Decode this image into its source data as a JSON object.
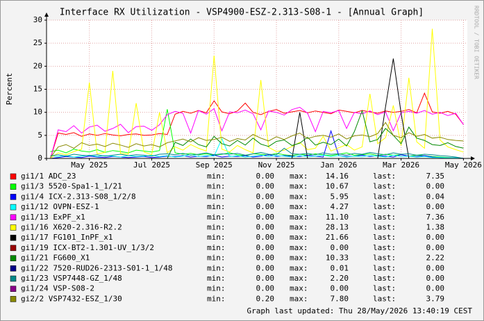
{
  "chart_data": {
    "type": "line",
    "title": "Interface RX Utilization - VSP4900-ESZ-2.313-S08-1 - [Annual Graph]",
    "y_label": "Percent",
    "watermark": "RRDTOOL / TOBI OETIKER",
    "footer": "Graph last updated: Thu 28/May/2026 13:40:19 CEST",
    "stat_labels": [
      "min:",
      "max:",
      "last:"
    ],
    "categories": [
      null,
      null,
      null,
      null,
      null,
      "May 2025",
      null,
      null,
      null,
      null,
      null,
      null,
      null,
      "Jul 2025",
      null,
      null,
      null,
      null,
      null,
      null,
      null,
      "Sep 2025",
      null,
      null,
      null,
      null,
      null,
      null,
      null,
      "Nov 2025",
      null,
      null,
      null,
      null,
      null,
      null,
      null,
      "Jan 2026",
      null,
      null,
      null,
      null,
      null,
      null,
      null,
      "Mar 2026",
      null,
      null,
      null,
      null,
      null,
      null,
      null,
      "May 2026"
    ],
    "ylim": [
      0,
      30
    ],
    "yticks": [
      0,
      5,
      10,
      15,
      20,
      25,
      30
    ],
    "grid": true,
    "series": [
      {
        "name": "gi1/1 ADC_23",
        "color": "#ff0000",
        "min": "0.00",
        "max": "14.16",
        "last": "7.35",
        "values": [
          0,
          5.5,
          5.2,
          5.6,
          4.8,
          5.3,
          5.0,
          5.4,
          5.1,
          4.9,
          5.2,
          5.3,
          5.0,
          5.1,
          5.4,
          5.2,
          9.6,
          10.2,
          9.8,
          10.4,
          9.9,
          12.5,
          10.1,
          9.7,
          10.3,
          12.0,
          10.0,
          9.5,
          10.2,
          10.6,
          9.8,
          10.1,
          10.4,
          9.9,
          10.3,
          10.0,
          9.7,
          10.5,
          10.2,
          9.9,
          10.4,
          10.1,
          9.8,
          10.3,
          10.0,
          10.2,
          10.6,
          9.9,
          14.16,
          10.1,
          9.8,
          10.2,
          9.6,
          7.35
        ]
      },
      {
        "name": "gi1/3 5520-Spa1-1_1/21",
        "color": "#00ff00",
        "min": "0.00",
        "max": "10.67",
        "last": "0.00",
        "values": [
          1.5,
          1.8,
          1.2,
          2.0,
          1.6,
          1.4,
          1.9,
          1.3,
          1.7,
          1.5,
          1.2,
          1.8,
          1.6,
          1.4,
          1.7,
          10.67,
          1.2,
          0.9,
          1.1,
          0.8,
          1.0,
          0.7,
          0.9,
          1.2,
          0.8,
          0.6,
          1.0,
          0.9,
          0.7,
          1.1,
          0.8,
          0.6,
          0.9,
          0.7,
          1.0,
          0.8,
          0.6,
          0.9,
          1.2,
          0.7,
          0.8,
          1.0,
          0.6,
          0.9,
          0.7,
          0.8,
          0.5,
          0.7,
          0.6,
          0.4,
          0.3,
          0.2,
          0.1,
          0
        ]
      },
      {
        "name": "gi1/4 ICX-2.313-S08_1/2/8",
        "color": "#0000ff",
        "min": "0.00",
        "max": "5.95",
        "last": "0.04",
        "values": [
          0,
          0.2,
          0.4,
          0.3,
          0.2,
          0.5,
          0.3,
          0.2,
          0.4,
          0.3,
          0.2,
          0.3,
          0.4,
          0.2,
          0.3,
          0.5,
          0.4,
          0.6,
          0.3,
          0.5,
          0.4,
          0.7,
          0.3,
          0.5,
          0.4,
          0.6,
          0.3,
          0.5,
          0.8,
          0.4,
          0.6,
          0.5,
          0.4,
          0.7,
          0.5,
          0.3,
          5.95,
          0.6,
          0.4,
          0.5,
          0.7,
          0.4,
          0.6,
          0.5,
          0.3,
          0.8,
          0.5,
          0.4,
          0.6,
          0.3,
          0.2,
          0.1,
          0.1,
          0.04
        ]
      },
      {
        "name": "gi1/12 OVPN-ESZ-1",
        "color": "#00ffff",
        "min": "0.00",
        "max": "4.27",
        "last": "0.00",
        "values": [
          0.5,
          0.4,
          0.6,
          0.3,
          0.5,
          0.7,
          0.4,
          0.6,
          0.5,
          0.3,
          0.6,
          0.4,
          0.5,
          0.7,
          0.4,
          0.6,
          0.3,
          0.5,
          0.8,
          0.4,
          0.6,
          0.5,
          4.27,
          0.4,
          0.6,
          0.3,
          0.5,
          0.7,
          0.4,
          0.6,
          0.5,
          0.3,
          0.6,
          0.4,
          0.5,
          0.7,
          0.4,
          0.6,
          0.3,
          0.5,
          0.4,
          0.6,
          0.5,
          0.3,
          0.7,
          0.4,
          0.5,
          0.3,
          0.4,
          0.2,
          0.2,
          0.1,
          0.1,
          0
        ]
      },
      {
        "name": "gi1/13 ExPF_x1",
        "color": "#ff00ff",
        "min": "0.00",
        "max": "11.10",
        "last": "7.36",
        "values": [
          0,
          6.2,
          5.8,
          7.1,
          5.5,
          6.8,
          7.2,
          5.9,
          6.5,
          7.4,
          5.6,
          6.9,
          7.0,
          6.1,
          7.3,
          9.5,
          10.2,
          9.8,
          5.5,
          10.4,
          9.6,
          10.8,
          6.0,
          10.1,
          9.9,
          10.5,
          9.7,
          6.2,
          10.3,
          10.0,
          9.4,
          10.6,
          11.1,
          9.8,
          5.8,
          10.2,
          9.9,
          10.4,
          6.5,
          10.0,
          9.7,
          10.3,
          9.5,
          10.1,
          6.0,
          9.9,
          10.2,
          9.8,
          10.4,
          9.6,
          10.0,
          9.3,
          9.8,
          7.36
        ]
      },
      {
        "name": "gi1/16 X620-2.316-R2.2",
        "color": "#ffff00",
        "min": "0.00",
        "max": "28.13",
        "last": "1.38",
        "values": [
          0,
          1.2,
          0.8,
          1.5,
          2.0,
          16.5,
          1.0,
          1.3,
          19.0,
          1.1,
          0.9,
          12.0,
          1.4,
          0.8,
          10.0,
          1.2,
          2.5,
          1.8,
          3.0,
          2.2,
          1.6,
          22.3,
          2.0,
          1.4,
          2.8,
          1.9,
          1.2,
          17.0,
          2.4,
          1.5,
          1.8,
          2.6,
          3.5,
          1.9,
          2.2,
          4.8,
          1.6,
          2.3,
          3.0,
          1.8,
          2.5,
          14.0,
          3.2,
          4.5,
          11.5,
          2.8,
          17.5,
          3.6,
          2.2,
          28.13,
          4.0,
          2.5,
          1.9,
          1.38
        ]
      },
      {
        "name": "gi1/17 FG101_InPF_x1",
        "color": "#000000",
        "min": "0.00",
        "max": "21.66",
        "last": "0.00",
        "values": [
          0,
          0,
          0,
          0,
          0,
          0,
          0,
          0,
          0,
          0,
          0,
          0,
          0,
          0,
          0,
          0,
          0,
          0,
          0,
          0,
          0,
          0,
          0,
          0,
          0,
          0,
          0,
          0,
          0,
          0,
          0,
          0,
          10.0,
          0,
          0,
          0,
          0,
          0,
          0,
          0,
          0,
          0,
          0,
          11.2,
          21.66,
          9.8,
          0,
          0,
          0,
          0,
          0,
          0,
          0,
          0
        ]
      },
      {
        "name": "gi1/19 ICX-BT2-1.301-UV_1/3/2",
        "color": "#990000",
        "min": "0.00",
        "max": "0.00",
        "last": "0.00",
        "values": [
          0,
          0,
          0,
          0,
          0,
          0,
          0,
          0,
          0,
          0,
          0,
          0,
          0,
          0,
          0,
          0,
          0,
          0,
          0,
          0,
          0,
          0,
          0,
          0,
          0,
          0,
          0,
          0,
          0,
          0,
          0,
          0,
          0,
          0,
          0,
          0,
          0,
          0,
          0,
          0,
          0,
          0,
          0,
          0,
          0,
          0,
          0,
          0,
          0,
          0,
          0,
          0,
          0,
          0
        ]
      },
      {
        "name": "gi1/21 FG600_X1",
        "color": "#008800",
        "min": "0.00",
        "max": "10.33",
        "last": "2.22",
        "values": [
          0,
          0,
          0,
          0,
          0,
          0,
          0,
          0,
          0,
          0,
          0,
          0,
          0,
          0,
          0,
          0,
          3.5,
          2.8,
          4.2,
          3.0,
          2.5,
          4.8,
          3.2,
          2.7,
          3.9,
          2.9,
          4.4,
          3.1,
          2.6,
          3.7,
          4.0,
          2.8,
          3.3,
          4.6,
          2.9,
          3.5,
          3.0,
          4.2,
          2.7,
          5.8,
          10.33,
          3.6,
          4.1,
          6.5,
          5.0,
          3.2,
          6.8,
          4.4,
          3.9,
          3.0,
          2.8,
          3.4,
          2.6,
          2.22
        ]
      },
      {
        "name": "gi1/22 7520-RUD26-2313-S01-1_1/48",
        "color": "#000088",
        "min": "0.00",
        "max": "0.01",
        "last": "0.00",
        "values": [
          0,
          0,
          0,
          0,
          0,
          0,
          0,
          0,
          0,
          0,
          0,
          0,
          0,
          0,
          0,
          0,
          0,
          0,
          0,
          0,
          0.01,
          0,
          0,
          0,
          0,
          0,
          0,
          0,
          0,
          0,
          0,
          0,
          0,
          0,
          0,
          0,
          0,
          0,
          0,
          0,
          0,
          0,
          0,
          0,
          0,
          0,
          0,
          0,
          0,
          0,
          0,
          0,
          0,
          0
        ]
      },
      {
        "name": "gi1/23 VSP7448-GZ_1/48",
        "color": "#008888",
        "min": "0.00",
        "max": "2.20",
        "last": "0.00",
        "values": [
          0.6,
          0.8,
          0.5,
          0.9,
          0.7,
          0.6,
          0.8,
          0.5,
          0.7,
          0.9,
          0.6,
          0.8,
          0.7,
          0.5,
          0.9,
          1.0,
          0.8,
          1.1,
          0.7,
          0.9,
          1.2,
          0.8,
          1.0,
          0.9,
          1.1,
          0.7,
          1.0,
          1.3,
          0.9,
          0.8,
          2.2,
          1.0,
          0.9,
          1.1,
          0.8,
          1.2,
          0.9,
          1.0,
          0.7,
          1.1,
          0.9,
          1.3,
          1.0,
          0.8,
          1.2,
          0.9,
          1.0,
          0.7,
          0.9,
          0.8,
          0.6,
          0.5,
          0.3,
          0
        ]
      },
      {
        "name": "gi1/24 VSP-S08-2",
        "color": "#880088",
        "min": "0.00",
        "max": "0.00",
        "last": "0.00",
        "values": [
          0,
          0,
          0,
          0,
          0,
          0,
          0,
          0,
          0,
          0,
          0,
          0,
          0,
          0,
          0,
          0,
          0,
          0,
          0,
          0,
          0,
          0,
          0,
          0,
          0,
          0,
          0,
          0,
          0,
          0,
          0,
          0,
          0,
          0,
          0,
          0,
          0,
          0,
          0,
          0,
          0,
          0,
          0,
          0,
          0,
          0,
          0,
          0,
          0,
          0,
          0,
          0,
          0,
          0
        ]
      },
      {
        "name": "gi2/2 VSP7432-ESZ_1/30",
        "color": "#888800",
        "min": "0.20",
        "max": "7.80",
        "last": "3.79",
        "values": [
          0.2,
          2.5,
          3.0,
          2.2,
          3.4,
          2.8,
          3.1,
          2.6,
          3.3,
          2.9,
          2.4,
          3.2,
          2.7,
          3.0,
          2.5,
          3.4,
          3.8,
          4.2,
          3.6,
          4.5,
          3.9,
          4.1,
          4.6,
          3.7,
          4.3,
          4.0,
          5.2,
          4.4,
          3.8,
          4.7,
          4.1,
          4.9,
          5.5,
          4.3,
          4.8,
          5.0,
          4.6,
          5.3,
          4.2,
          4.9,
          5.1,
          4.7,
          5.4,
          7.8,
          5.0,
          4.5,
          5.6,
          4.8,
          5.2,
          4.4,
          4.6,
          4.1,
          3.9,
          3.79
        ]
      }
    ]
  }
}
